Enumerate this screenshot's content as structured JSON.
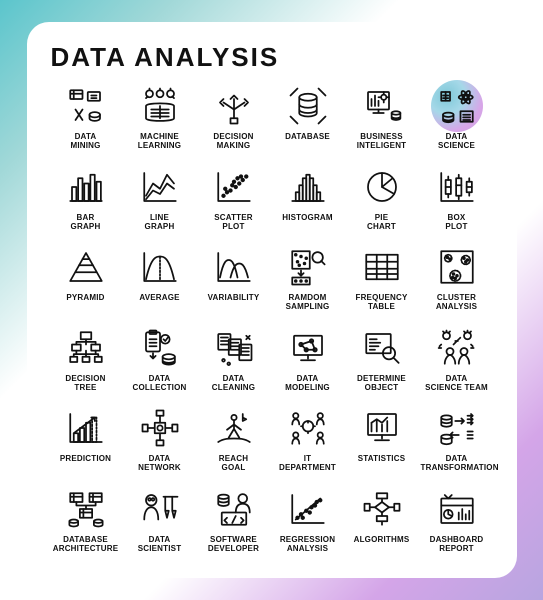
{
  "title": "DATA  ANALYSIS",
  "colors": {
    "stroke": "#111111",
    "gradient_start": "#5bc5cc",
    "gradient_end": "#b8a5e0",
    "highlight_a": "#7ec8d8",
    "highlight_b": "#d8a5e8",
    "card_bg": "#ffffff"
  },
  "grid": {
    "cols": 6,
    "rows": 6
  },
  "icons": [
    {
      "id": "data-mining",
      "label": "DATA\nMINING"
    },
    {
      "id": "machine-learning",
      "label": "MACHINE\nLEARNING"
    },
    {
      "id": "decision-making",
      "label": "DECISION\nMAKING"
    },
    {
      "id": "database",
      "label": "DATABASE"
    },
    {
      "id": "business-inteligent",
      "label": "BUSINESS\nINTELIGENT"
    },
    {
      "id": "data-science",
      "label": "DATA\nSCIENCE",
      "highlight": true
    },
    {
      "id": "bar-graph",
      "label": "BAR\nGRAPH"
    },
    {
      "id": "line-graph",
      "label": "LINE\nGRAPH"
    },
    {
      "id": "scatter-plot",
      "label": "SCATTER\nPLOT"
    },
    {
      "id": "histogram",
      "label": "HISTOGRAM"
    },
    {
      "id": "pie-chart",
      "label": "PIE\nCHART"
    },
    {
      "id": "box-plot",
      "label": "BOX\nPLOT"
    },
    {
      "id": "pyramid",
      "label": "PYRAMID"
    },
    {
      "id": "average",
      "label": "AVERAGE"
    },
    {
      "id": "variability",
      "label": "VARIABILITY"
    },
    {
      "id": "random-sampling",
      "label": "RAMDOM\nSAMPLING"
    },
    {
      "id": "frequency-table",
      "label": "FREQUENCY\nTABLE"
    },
    {
      "id": "cluster-analysis",
      "label": "CLUSTER\nANALYSIS"
    },
    {
      "id": "decision-tree",
      "label": "DECISION\nTREE"
    },
    {
      "id": "data-collection",
      "label": "DATA\nCOLLECTION"
    },
    {
      "id": "data-cleaning",
      "label": "DATA\nCLEANING"
    },
    {
      "id": "data-modeling",
      "label": "DATA\nMODELING"
    },
    {
      "id": "determine-object",
      "label": "DETERMINE\nOBJECT"
    },
    {
      "id": "data-science-team",
      "label": "DATA\nSCIENCE TEAM"
    },
    {
      "id": "prediction",
      "label": "PREDICTION"
    },
    {
      "id": "data-network",
      "label": "DATA\nNETWORK"
    },
    {
      "id": "reach-goal",
      "label": "REACH\nGOAL"
    },
    {
      "id": "it-department",
      "label": "IT\nDEPARTMENT"
    },
    {
      "id": "statistics",
      "label": "STATISTICS"
    },
    {
      "id": "data-transformation",
      "label": "DATA\nTRANSFORMATION"
    },
    {
      "id": "database-architecture",
      "label": "DATABASE\nARCHITECTURE"
    },
    {
      "id": "data-scientist",
      "label": "DATA\nSCIENTIST"
    },
    {
      "id": "software-developer",
      "label": "SOFTWARE\nDEVELOPER"
    },
    {
      "id": "regression-analysis",
      "label": "REGRESSION\nANALYSIS"
    },
    {
      "id": "algorithms",
      "label": "ALGORITHMS"
    },
    {
      "id": "dashboard-report",
      "label": "DASHBOARD\nREPORT"
    }
  ]
}
